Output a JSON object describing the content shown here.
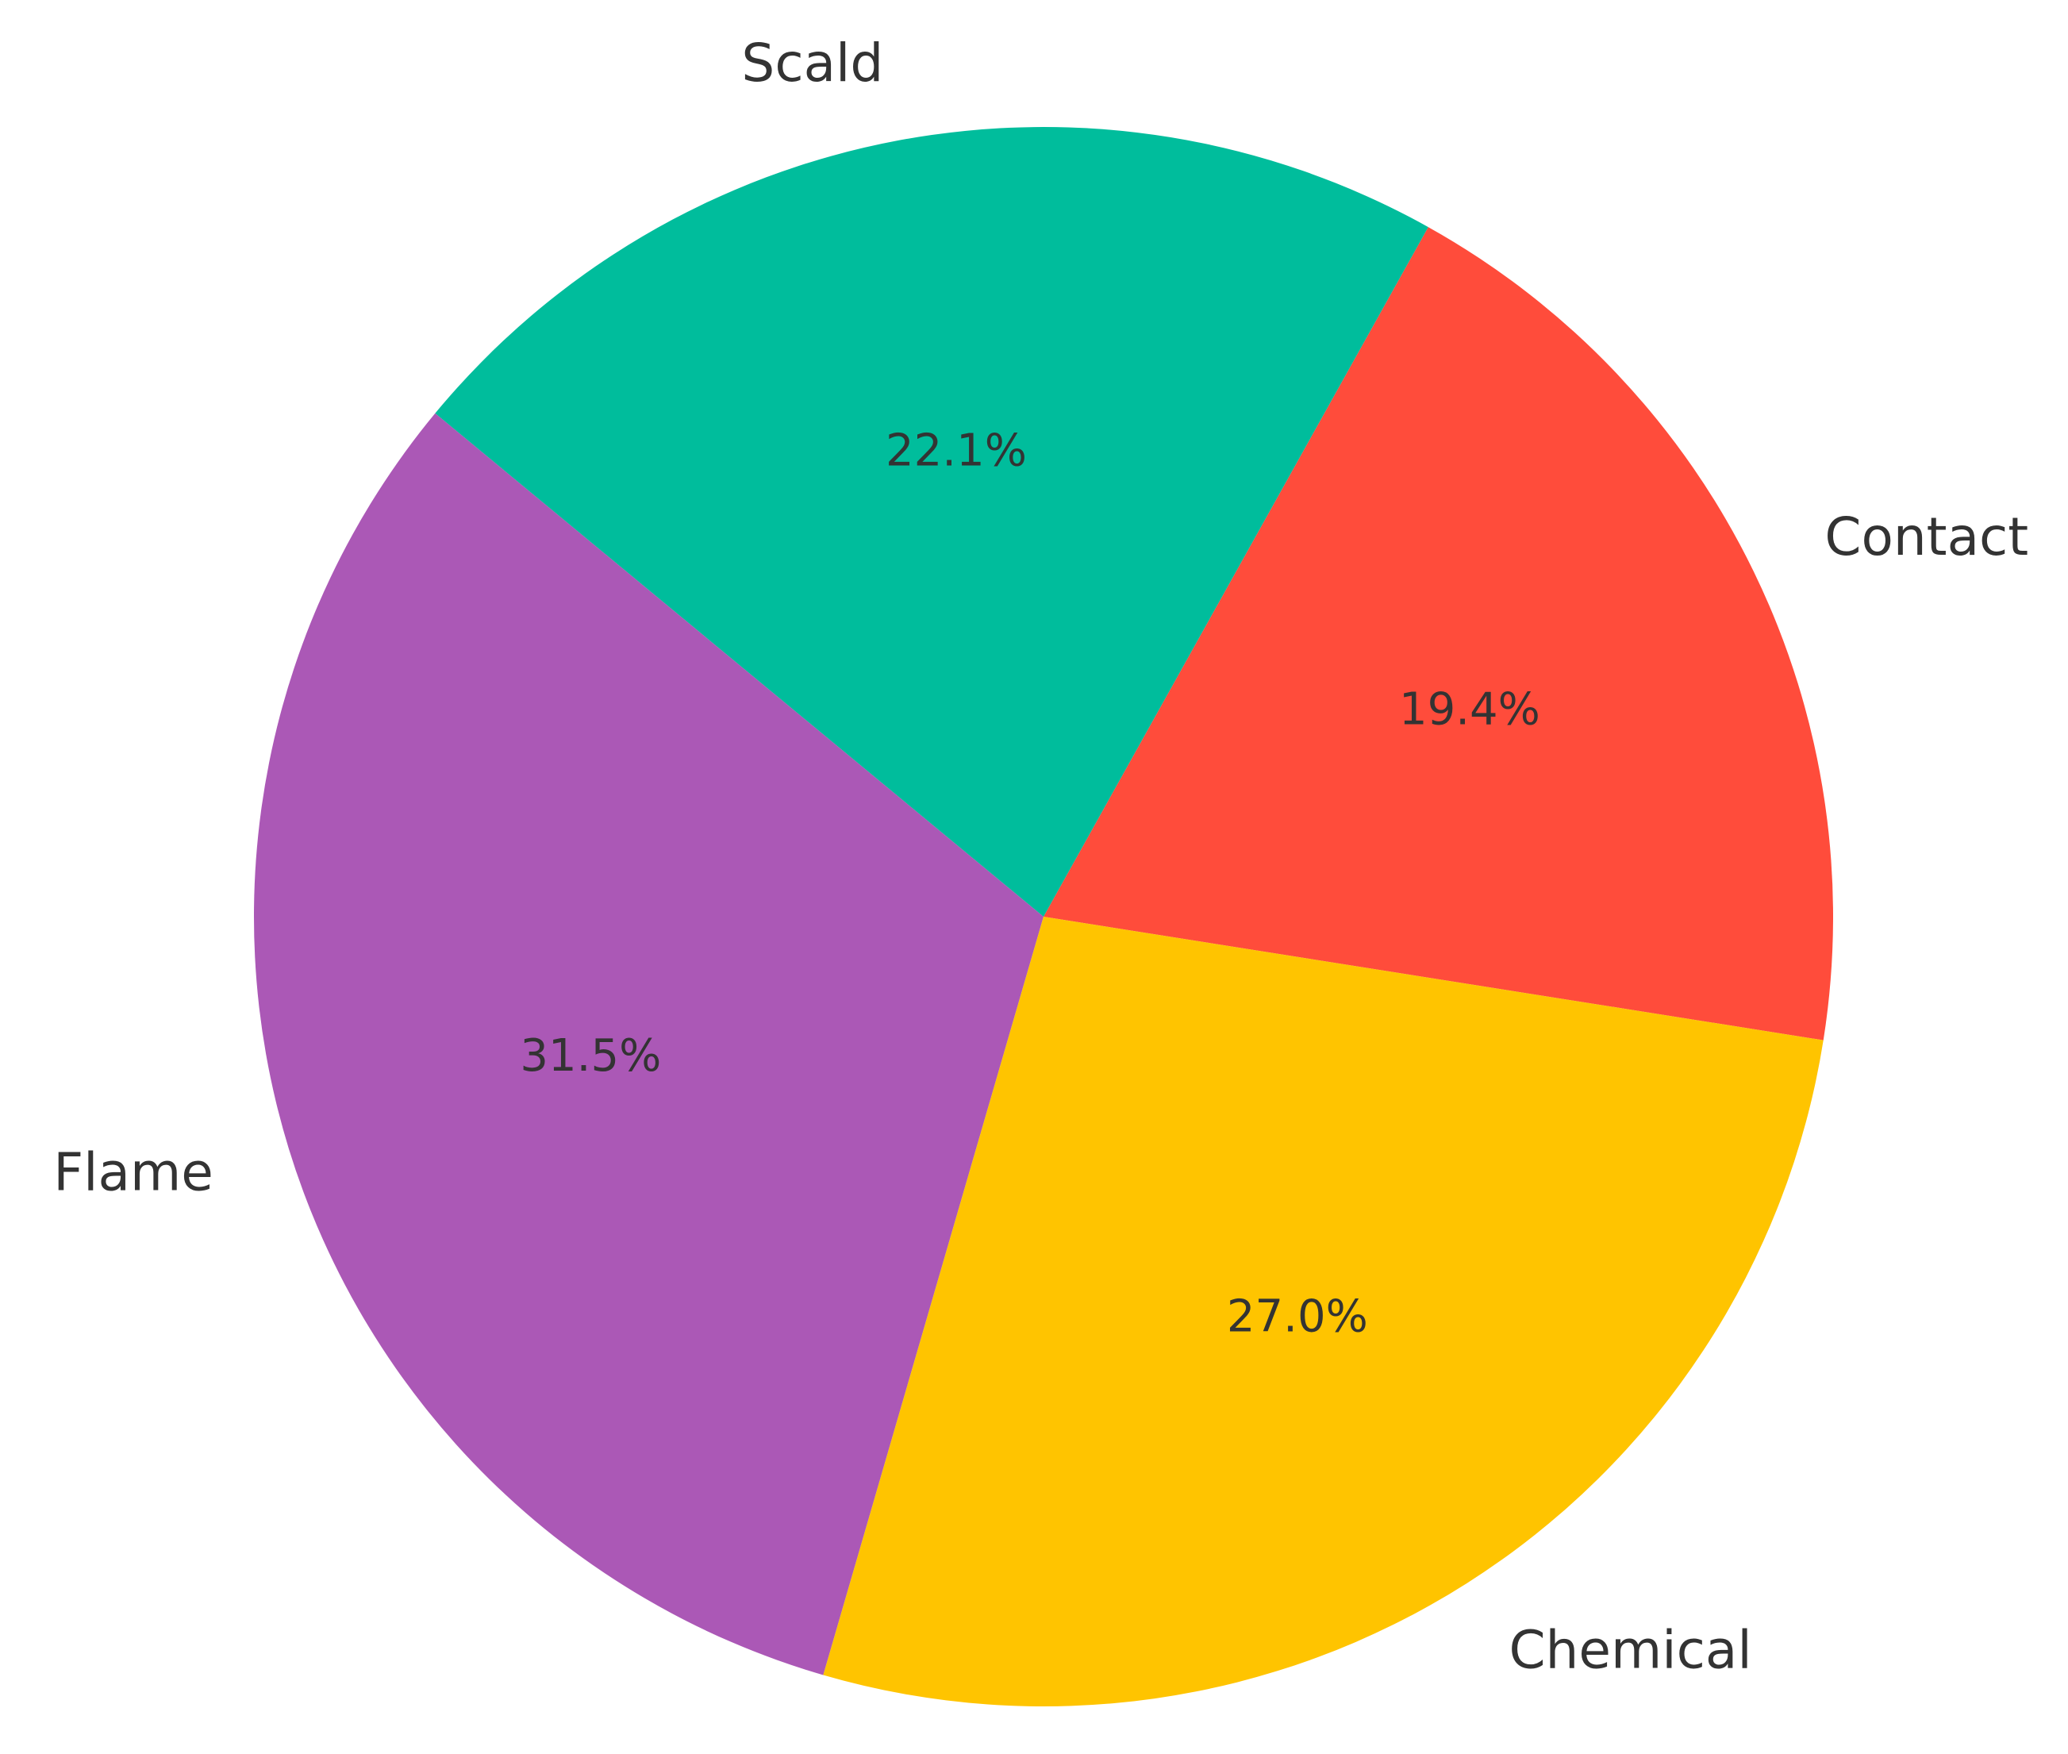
{
  "chart_data": {
    "type": "pie",
    "slices": [
      {
        "label": "Contact",
        "value": 19.4,
        "pct_label": "19.4%",
        "color": "#FF4C3B"
      },
      {
        "label": "Scald",
        "value": 22.1,
        "pct_label": "22.1%",
        "color": "#00BD9C"
      },
      {
        "label": "Flame",
        "value": 31.5,
        "pct_label": "31.5%",
        "color": "#AB58B6"
      },
      {
        "label": "Chemical",
        "value": 27.0,
        "pct_label": "27.0%",
        "color": "#FFC400"
      }
    ],
    "start_angle_deg": -9,
    "direction": "counterclockwise",
    "legend": "none",
    "grid": false
  }
}
